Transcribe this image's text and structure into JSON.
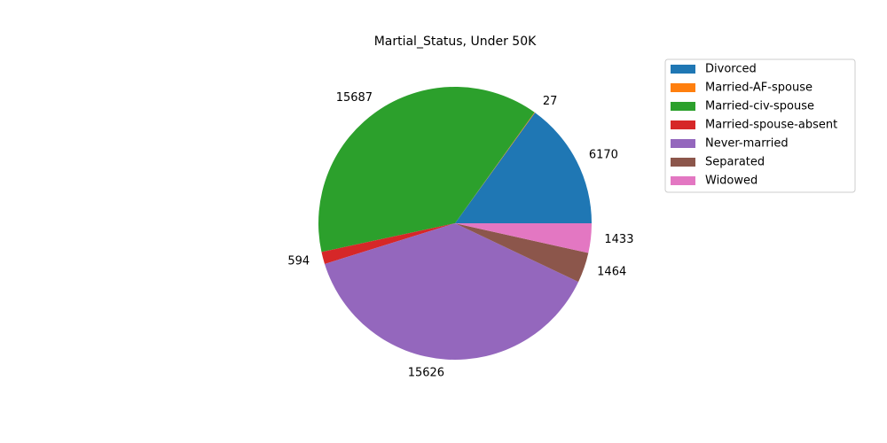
{
  "chart_data": {
    "type": "pie",
    "title": "Martial_Status, Under 50K",
    "categories": [
      " Divorced",
      " Married-AF-spouse",
      " Married-civ-spouse",
      " Married-spouse-absent",
      " Never-married",
      " Separated",
      " Widowed"
    ],
    "values": [
      6170,
      27,
      15687,
      594,
      15626,
      1464,
      1433
    ],
    "value_labels": [
      "6170",
      "27",
      "15687",
      "594",
      "15626",
      "1464",
      "1433"
    ],
    "colors": [
      "#1f77b4",
      "#ff7f0e",
      "#2ca02c",
      "#d62728",
      "#9467bd",
      "#8c564b",
      "#e377c2"
    ],
    "start_angle_deg": 0,
    "direction": "counterclockwise",
    "legend_position": "upper right, outside plot"
  }
}
